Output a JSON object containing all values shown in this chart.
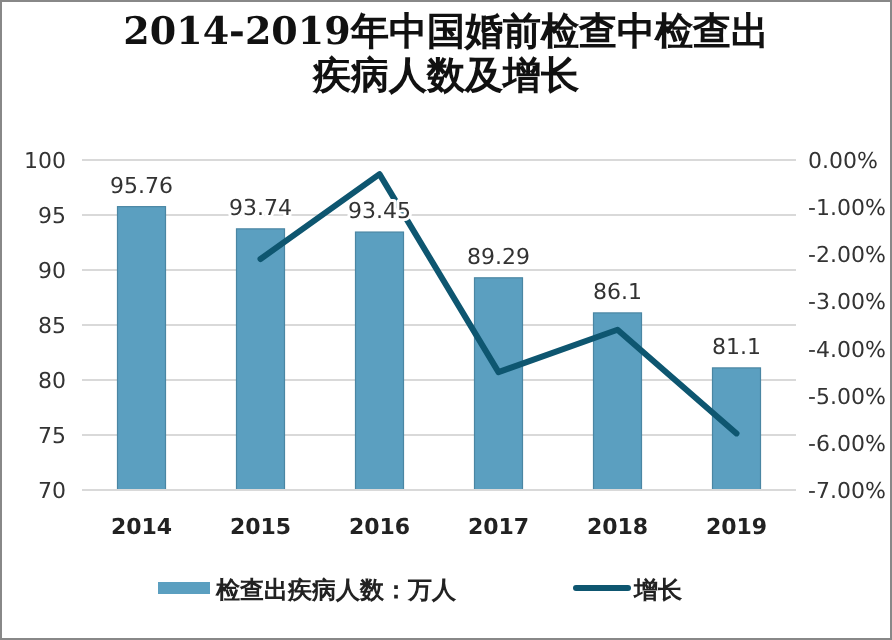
{
  "chart_data": {
    "type": "bar",
    "title": "2014-2019年中国婚前检查中检查出疾病人数及增长",
    "categories": [
      "2014",
      "2015",
      "2016",
      "2017",
      "2018",
      "2019"
    ],
    "series": [
      {
        "name": "检查出疾病人数：万人",
        "color": "#5b9fc0",
        "values": [
          95.76,
          93.74,
          93.45,
          89.29,
          86.1,
          81.1
        ],
        "value_labels": [
          "95.76",
          "93.74",
          "93.45",
          "89.29",
          "86.1",
          "81.1"
        ]
      },
      {
        "name": "增长",
        "type": "line",
        "axis": "y2",
        "color": "#0e5670",
        "values": [
          null,
          -2.1,
          -0.3,
          -4.5,
          -3.6,
          -5.8
        ]
      }
    ],
    "ylim": [
      70,
      100
    ],
    "yticks": [
      70,
      75,
      80,
      85,
      90,
      95,
      100
    ],
    "y2lim": [
      -7,
      0
    ],
    "y2ticks": [
      {
        "value": 0,
        "label": "0.00%"
      },
      {
        "value": -1,
        "label": "-1.00%"
      },
      {
        "value": -2,
        "label": "-2.00%"
      },
      {
        "value": -3,
        "label": "-3.00%"
      },
      {
        "value": -4,
        "label": "-4.00%"
      },
      {
        "value": -5,
        "label": "-5.00%"
      },
      {
        "value": -6,
        "label": "-6.00%"
      },
      {
        "value": -7,
        "label": "-7.00%"
      }
    ],
    "grid": "y",
    "legend": "bottom"
  }
}
